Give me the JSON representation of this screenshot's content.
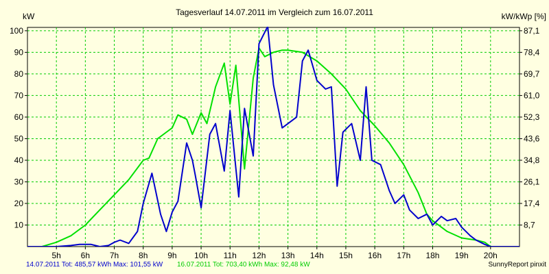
{
  "chart_data": {
    "type": "line",
    "title": "Tagesverlauf 14.07.2011 im Vergleich zum 16.07.2011",
    "ylabel_left": "kW",
    "ylabel_right": "kW/kWp [%]",
    "xlim": [
      4.0,
      21.0
    ],
    "ylim": [
      0,
      101.55
    ],
    "x_ticks": [
      5,
      6,
      7,
      8,
      9,
      10,
      11,
      12,
      13,
      14,
      15,
      16,
      17,
      18,
      19,
      20
    ],
    "x_tick_labels": [
      "5h",
      "6h",
      "7h",
      "8h",
      "9h",
      "10h",
      "11h",
      "12h",
      "13h",
      "14h",
      "15h",
      "16h",
      "17h",
      "18h",
      "19h",
      "20h"
    ],
    "y_ticks": [
      10,
      20,
      30,
      40,
      50,
      60,
      70,
      80,
      90,
      100
    ],
    "y_tick_labels": [
      "10",
      "20",
      "30",
      "40",
      "50",
      "60",
      "70",
      "80",
      "90",
      "100"
    ],
    "y2_ticks": [
      8.7,
      17.4,
      26.1,
      34.8,
      43.6,
      52.3,
      61.0,
      69.7,
      78.4,
      87.1
    ],
    "y2_tick_labels": [
      "8,7",
      "17,4",
      "26,1",
      "34,8",
      "43,6",
      "52,3",
      "61,0",
      "69,7",
      "78,4",
      "87,1"
    ],
    "grid": true,
    "series": [
      {
        "name": "14.07.2011",
        "color": "#0000cc",
        "x": [
          4.0,
          4.5,
          5.0,
          5.5,
          5.8,
          6.2,
          6.5,
          6.8,
          7.0,
          7.2,
          7.5,
          7.8,
          8.0,
          8.3,
          8.6,
          8.8,
          9.0,
          9.2,
          9.5,
          9.7,
          9.8,
          10.0,
          10.3,
          10.5,
          10.8,
          11.0,
          11.3,
          11.5,
          11.8,
          12.0,
          12.3,
          12.5,
          12.8,
          13.0,
          13.3,
          13.5,
          13.7,
          14.0,
          14.3,
          14.5,
          14.7,
          14.9,
          15.2,
          15.5,
          15.7,
          15.9,
          16.2,
          16.5,
          16.7,
          17.0,
          17.2,
          17.5,
          17.8,
          18.0,
          18.3,
          18.5,
          18.8,
          19.0,
          19.3,
          19.5,
          19.8,
          20.0,
          20.5,
          21.0
        ],
        "y": [
          0,
          0,
          0,
          0.5,
          1,
          1,
          0,
          0.5,
          2,
          3,
          1.5,
          7,
          20,
          34,
          15,
          7,
          16,
          21,
          48,
          40,
          33,
          18,
          52,
          57,
          35,
          63,
          23,
          64,
          42,
          94,
          102,
          75,
          55,
          57,
          60,
          86,
          91,
          77,
          73,
          74,
          28,
          53,
          57,
          40,
          74,
          40,
          38,
          26,
          20,
          24,
          17,
          13,
          15,
          10,
          14,
          12,
          13,
          9,
          5,
          3,
          1,
          0,
          0,
          0
        ]
      },
      {
        "name": "16.07.2011",
        "color": "#00e000",
        "x": [
          4.0,
          4.5,
          5.0,
          5.5,
          6.0,
          6.5,
          7.0,
          7.5,
          8.0,
          8.2,
          8.5,
          8.8,
          9.0,
          9.2,
          9.5,
          9.7,
          10.0,
          10.2,
          10.5,
          10.8,
          11.0,
          11.2,
          11.5,
          11.8,
          12.0,
          12.2,
          12.5,
          12.8,
          13.0,
          13.5,
          14.0,
          14.5,
          15.0,
          15.5,
          16.0,
          16.5,
          17.0,
          17.5,
          17.8,
          18.0,
          18.5,
          19.0,
          19.5,
          19.8,
          20.0,
          20.5,
          21.0
        ],
        "y": [
          0,
          0,
          2,
          5,
          10,
          17,
          24,
          31,
          40,
          41,
          50,
          53,
          55,
          61,
          59,
          52,
          62,
          57,
          74,
          85,
          66,
          84,
          36,
          78,
          92,
          88,
          90,
          91,
          91,
          90,
          86,
          80,
          73,
          63,
          56,
          48,
          38,
          25,
          15,
          12,
          7,
          4,
          3,
          2,
          0,
          0,
          0
        ]
      }
    ],
    "legend": "bottom-left",
    "footer": {
      "series1_text": "14.07.2011 Tot: 485,57 kWh Max: 101,55 kW",
      "series2_text": "16.07.2011 Tot: 703,40 kWh Max: 92,48 kW",
      "brand": "SunnyReport pinxit"
    }
  }
}
